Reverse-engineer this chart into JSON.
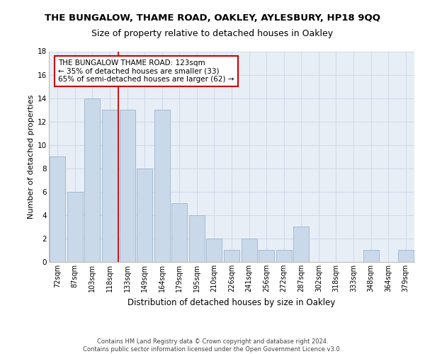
{
  "title1": "THE BUNGALOW, THAME ROAD, OAKLEY, AYLESBURY, HP18 9QQ",
  "title2": "Size of property relative to detached houses in Oakley",
  "xlabel": "Distribution of detached houses by size in Oakley",
  "ylabel": "Number of detached properties",
  "categories": [
    "72sqm",
    "87sqm",
    "103sqm",
    "118sqm",
    "133sqm",
    "149sqm",
    "164sqm",
    "179sqm",
    "195sqm",
    "210sqm",
    "226sqm",
    "241sqm",
    "256sqm",
    "272sqm",
    "287sqm",
    "302sqm",
    "318sqm",
    "333sqm",
    "348sqm",
    "364sqm",
    "379sqm"
  ],
  "values": [
    9,
    6,
    14,
    13,
    13,
    8,
    13,
    5,
    4,
    2,
    1,
    2,
    1,
    1,
    3,
    0,
    0,
    0,
    1,
    0,
    1
  ],
  "bar_color": "#c9d9ea",
  "bar_edge_color": "#9ab4cc",
  "grid_color": "#d0d8e8",
  "background_color": "#e8eef6",
  "vline_x": 3.5,
  "vline_color": "#cc0000",
  "annotation_text": "THE BUNGALOW THAME ROAD: 123sqm\n← 35% of detached houses are smaller (33)\n65% of semi-detached houses are larger (62) →",
  "annotation_box_color": "#ffffff",
  "annotation_box_edge": "#cc0000",
  "ylim": [
    0,
    18
  ],
  "yticks": [
    0,
    2,
    4,
    6,
    8,
    10,
    12,
    14,
    16,
    18
  ],
  "footer": "Contains HM Land Registry data © Crown copyright and database right 2024.\nContains public sector information licensed under the Open Government Licence v3.0.",
  "title1_fontsize": 9.5,
  "title2_fontsize": 9,
  "xlabel_fontsize": 8.5,
  "ylabel_fontsize": 8,
  "tick_fontsize": 7,
  "annotation_fontsize": 7.5,
  "footer_fontsize": 6
}
